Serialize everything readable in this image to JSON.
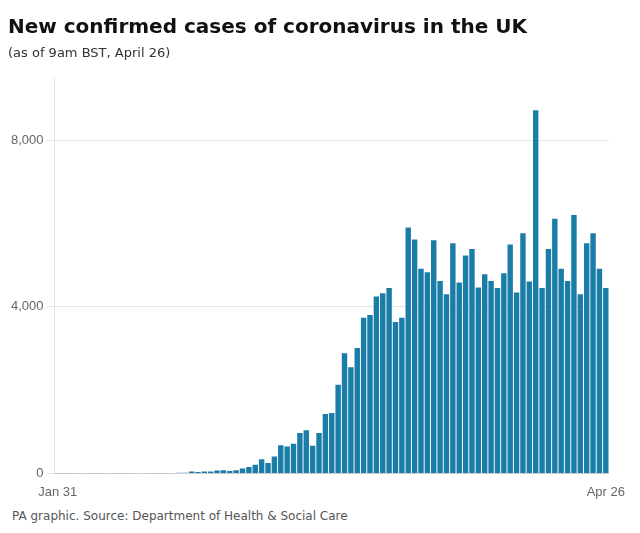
{
  "chart_data": {
    "type": "bar",
    "title": "New confirmed cases of coronavirus in the UK",
    "subtitle": "(as of 9am BST, April 26)",
    "footer": "PA graphic. Source: Department of Health & Social Care",
    "color": "#1a7da8",
    "categories": [
      "Jan 31",
      null,
      null,
      null,
      null,
      null,
      null,
      null,
      null,
      null,
      null,
      null,
      null,
      null,
      null,
      null,
      null,
      null,
      null,
      null,
      null,
      null,
      null,
      null,
      null,
      null,
      null,
      null,
      null,
      null,
      null,
      null,
      null,
      null,
      null,
      null,
      null,
      null,
      null,
      null,
      null,
      null,
      null,
      null,
      null,
      null,
      null,
      null,
      null,
      null,
      null,
      null,
      null,
      null,
      null,
      null,
      null,
      null,
      null,
      null,
      null,
      null,
      null,
      null,
      null,
      null,
      null,
      null,
      null,
      null,
      null,
      null,
      null,
      null,
      null,
      null,
      null,
      null,
      null,
      null,
      null,
      null,
      null,
      null,
      null,
      null,
      "Apr 26"
    ],
    "values": [
      2,
      1,
      1,
      0,
      0,
      2,
      0,
      2,
      0,
      1,
      1,
      6,
      10,
      0,
      8,
      5,
      0,
      4,
      8,
      18,
      13,
      47,
      33,
      48,
      45,
      69,
      77,
      60,
      73,
      115,
      152,
      208,
      342,
      251,
      407,
      676,
      643,
      714,
      967,
      1035,
      665,
      967,
      1427,
      1452,
      2129,
      2885,
      2546,
      3009,
      3735,
      3802,
      4244,
      4324,
      4450,
      3634,
      3735,
      5903,
      5612,
      4913,
      4830,
      5599,
      4617,
      4301,
      5525,
      4583,
      5233,
      5386,
      4463,
      4782,
      4617,
      4451,
      4806,
      5492,
      4344,
      5765,
      4603,
      8719,
      4451,
      5386,
      6111,
      4913,
      4617,
      6201,
      4301,
      5525,
      5765,
      4913,
      4451
    ],
    "ylim": [
      0,
      9500
    ],
    "yticks": [
      0,
      {
        "value": 4000,
        "label": "4,000"
      },
      {
        "value": 8000,
        "label": "8,000"
      }
    ],
    "grid": true
  }
}
